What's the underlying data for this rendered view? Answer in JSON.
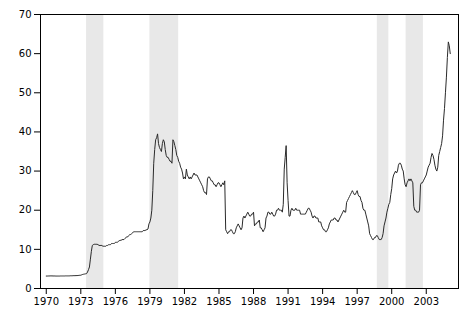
{
  "chart_data": {
    "type": "line",
    "x": [
      1970.0,
      1970.083,
      1970.167,
      1970.25,
      1970.333,
      1970.417,
      1970.5,
      1970.583,
      1970.667,
      1970.75,
      1970.833,
      1970.917,
      1971.0,
      1971.083,
      1971.167,
      1971.25,
      1971.333,
      1971.417,
      1971.5,
      1971.583,
      1971.667,
      1971.75,
      1971.833,
      1971.917,
      1972.0,
      1972.083,
      1972.167,
      1972.25,
      1972.333,
      1972.417,
      1972.5,
      1972.583,
      1972.667,
      1972.75,
      1972.833,
      1972.917,
      1973.0,
      1973.083,
      1973.167,
      1973.25,
      1973.333,
      1973.417,
      1973.5,
      1973.583,
      1973.667,
      1973.75,
      1973.833,
      1973.917,
      1974.0,
      1974.083,
      1974.167,
      1974.25,
      1974.333,
      1974.417,
      1974.5,
      1974.583,
      1974.667,
      1974.75,
      1974.833,
      1974.917,
      1975.0,
      1975.083,
      1975.167,
      1975.25,
      1975.333,
      1975.417,
      1975.5,
      1975.583,
      1975.667,
      1975.75,
      1975.833,
      1975.917,
      1976.0,
      1976.083,
      1976.167,
      1976.25,
      1976.333,
      1976.417,
      1976.5,
      1976.583,
      1976.667,
      1976.75,
      1976.833,
      1976.917,
      1977.0,
      1977.083,
      1977.167,
      1977.25,
      1977.333,
      1977.417,
      1977.5,
      1977.583,
      1977.667,
      1977.75,
      1977.833,
      1977.917,
      1978.0,
      1978.083,
      1978.167,
      1978.25,
      1978.333,
      1978.417,
      1978.5,
      1978.583,
      1978.667,
      1978.75,
      1978.833,
      1978.917,
      1979.0,
      1979.083,
      1979.167,
      1979.25,
      1979.333,
      1979.417,
      1979.5,
      1979.583,
      1979.667,
      1979.75,
      1979.833,
      1979.917,
      1980.0,
      1980.083,
      1980.167,
      1980.25,
      1980.333,
      1980.417,
      1980.5,
      1980.583,
      1980.667,
      1980.75,
      1980.833,
      1980.917,
      1981.0,
      1981.083,
      1981.167,
      1981.25,
      1981.333,
      1981.417,
      1981.5,
      1981.583,
      1981.667,
      1981.75,
      1981.833,
      1981.917,
      1982.0,
      1982.083,
      1982.167,
      1982.25,
      1982.333,
      1982.417,
      1982.5,
      1982.583,
      1982.667,
      1982.75,
      1982.833,
      1982.917,
      1983.0,
      1983.083,
      1983.167,
      1983.25,
      1983.333,
      1983.417,
      1983.5,
      1983.583,
      1983.667,
      1983.75,
      1983.833,
      1983.917,
      1984.0,
      1984.083,
      1984.167,
      1984.25,
      1984.333,
      1984.417,
      1984.5,
      1984.583,
      1984.667,
      1984.75,
      1984.833,
      1984.917,
      1985.0,
      1985.083,
      1985.167,
      1985.25,
      1985.333,
      1985.417,
      1985.5,
      1985.583,
      1985.667,
      1985.75,
      1985.833,
      1985.917,
      1986.0,
      1986.083,
      1986.167,
      1986.25,
      1986.333,
      1986.417,
      1986.5,
      1986.583,
      1986.667,
      1986.75,
      1986.833,
      1986.917,
      1987.0,
      1987.083,
      1987.167,
      1987.25,
      1987.333,
      1987.417,
      1987.5,
      1987.583,
      1987.667,
      1987.75,
      1987.833,
      1987.917,
      1988.0,
      1988.083,
      1988.167,
      1988.25,
      1988.333,
      1988.417,
      1988.5,
      1988.583,
      1988.667,
      1988.75,
      1988.833,
      1988.917,
      1989.0,
      1989.083,
      1989.167,
      1989.25,
      1989.333,
      1989.417,
      1989.5,
      1989.583,
      1989.667,
      1989.75,
      1989.833,
      1989.917,
      1990.0,
      1990.083,
      1990.167,
      1990.25,
      1990.333,
      1990.417,
      1990.5,
      1990.583,
      1990.667,
      1990.75,
      1990.833,
      1990.917,
      1991.0,
      1991.083,
      1991.167,
      1991.25,
      1991.333,
      1991.417,
      1991.5,
      1991.583,
      1991.667,
      1991.75,
      1991.833,
      1991.917,
      1992.0,
      1992.083,
      1992.167,
      1992.25,
      1992.333,
      1992.417,
      1992.5,
      1992.583,
      1992.667,
      1992.75,
      1992.833,
      1992.917,
      1993.0,
      1993.083,
      1993.167,
      1993.25,
      1993.333,
      1993.417,
      1993.5,
      1993.583,
      1993.667,
      1993.75,
      1993.833,
      1993.917,
      1994.0,
      1994.083,
      1994.167,
      1994.25,
      1994.333,
      1994.417,
      1994.5,
      1994.583,
      1994.667,
      1994.75,
      1994.833,
      1994.917,
      1995.0,
      1995.083,
      1995.167,
      1995.25,
      1995.333,
      1995.417,
      1995.5,
      1995.583,
      1995.667,
      1995.75,
      1995.833,
      1995.917,
      1996.0,
      1996.083,
      1996.167,
      1996.25,
      1996.333,
      1996.417,
      1996.5,
      1996.583,
      1996.667,
      1996.75,
      1996.833,
      1996.917,
      1997.0,
      1997.083,
      1997.167,
      1997.25,
      1997.333,
      1997.417,
      1997.5,
      1997.583,
      1997.667,
      1997.75,
      1997.833,
      1997.917,
      1998.0,
      1998.083,
      1998.167,
      1998.25,
      1998.333,
      1998.417,
      1998.5,
      1998.583,
      1998.667,
      1998.75,
      1998.833,
      1998.917,
      1999.0,
      1999.083,
      1999.167,
      1999.25,
      1999.333,
      1999.417,
      1999.5,
      1999.583,
      1999.667,
      1999.75,
      1999.833,
      1999.917,
      2000.0,
      2000.083,
      2000.167,
      2000.25,
      2000.333,
      2000.417,
      2000.5,
      2000.583,
      2000.667,
      2000.75,
      2000.833,
      2000.917,
      2001.0,
      2001.083,
      2001.167,
      2001.25,
      2001.333,
      2001.417,
      2001.5,
      2001.583,
      2001.667,
      2001.75,
      2001.833,
      2001.917,
      2002.0,
      2002.083,
      2002.167,
      2002.25,
      2002.333,
      2002.417,
      2002.5,
      2002.583,
      2002.667,
      2002.75,
      2002.833,
      2002.917,
      2003.0,
      2003.083,
      2003.167,
      2003.25,
      2003.333,
      2003.417,
      2003.5,
      2003.583,
      2003.667,
      2003.75,
      2003.833,
      2003.917,
      2004.0,
      2004.083,
      2004.167,
      2004.25,
      2004.333,
      2004.417,
      2004.5,
      2004.583,
      2004.667,
      2004.75,
      2004.833,
      2004.917,
      2005.0,
      2005.083
    ],
    "values": [
      3.18,
      3.18,
      3.2,
      3.2,
      3.22,
      3.22,
      3.22,
      3.2,
      3.2,
      3.2,
      3.18,
      3.18,
      3.18,
      3.18,
      3.18,
      3.2,
      3.2,
      3.2,
      3.2,
      3.2,
      3.22,
      3.22,
      3.22,
      3.22,
      3.22,
      3.25,
      3.25,
      3.25,
      3.28,
      3.28,
      3.28,
      3.3,
      3.3,
      3.32,
      3.35,
      3.38,
      3.4,
      3.5,
      3.6,
      3.65,
      3.7,
      3.75,
      3.8,
      4.2,
      4.8,
      5.5,
      7.5,
      9.5,
      11.0,
      11.2,
      11.3,
      11.3,
      11.3,
      11.3,
      11.2,
      11.0,
      11.0,
      11.0,
      11.0,
      10.8,
      10.8,
      10.8,
      10.8,
      11.0,
      11.0,
      11.2,
      11.2,
      11.2,
      11.5,
      11.5,
      11.5,
      11.5,
      11.8,
      11.8,
      11.8,
      12.0,
      12.2,
      12.3,
      12.3,
      12.5,
      12.5,
      12.5,
      12.8,
      13.0,
      13.2,
      13.2,
      13.5,
      13.8,
      13.8,
      14.0,
      14.2,
      14.5,
      14.5,
      14.5,
      14.5,
      14.5,
      14.5,
      14.5,
      14.5,
      14.5,
      14.5,
      14.8,
      14.8,
      14.8,
      15.0,
      15.0,
      15.2,
      16.5,
      17.0,
      18.0,
      20.0,
      25.0,
      32.0,
      35.5,
      38.0,
      38.5,
      39.5,
      37.0,
      36.0,
      35.5,
      35.0,
      37.0,
      38.0,
      37.5,
      35.5,
      34.0,
      33.5,
      33.5,
      33.0,
      32.5,
      32.5,
      32.0,
      38.0,
      37.5,
      36.5,
      35.5,
      34.0,
      33.5,
      32.5,
      32.0,
      31.0,
      30.5,
      29.5,
      28.0,
      28.5,
      28.0,
      30.5,
      29.0,
      28.5,
      28.0,
      28.5,
      28.0,
      28.5,
      29.0,
      29.5,
      29.0,
      29.0,
      29.0,
      28.5,
      28.0,
      27.5,
      27.0,
      26.5,
      26.0,
      25.0,
      24.5,
      24.5,
      24.0,
      28.0,
      28.5,
      28.5,
      28.0,
      27.5,
      27.5,
      27.0,
      26.5,
      26.5,
      26.0,
      26.5,
      27.0,
      27.0,
      26.5,
      26.0,
      26.5,
      27.0,
      26.5,
      27.5,
      15.0,
      14.5,
      14.0,
      14.5,
      14.5,
      15.0,
      15.0,
      14.5,
      14.0,
      14.0,
      14.5,
      15.5,
      16.0,
      16.5,
      16.0,
      15.5,
      15.0,
      15.5,
      18.0,
      18.5,
      18.0,
      18.5,
      19.0,
      19.5,
      19.0,
      18.5,
      18.5,
      19.0,
      19.0,
      19.5,
      16.0,
      16.5,
      16.5,
      17.0,
      17.0,
      17.5,
      15.5,
      15.5,
      15.0,
      14.5,
      15.0,
      15.5,
      18.0,
      18.5,
      19.5,
      19.5,
      19.0,
      19.0,
      19.5,
      19.0,
      18.5,
      18.5,
      19.0,
      20.0,
      20.0,
      20.5,
      20.0,
      20.0,
      20.0,
      19.5,
      21.5,
      30.5,
      33.5,
      36.5,
      27.0,
      22.5,
      18.5,
      18.5,
      20.0,
      20.5,
      20.0,
      20.0,
      20.0,
      20.5,
      20.0,
      20.0,
      20.0,
      20.0,
      19.0,
      19.0,
      19.0,
      19.0,
      19.0,
      19.0,
      19.5,
      20.0,
      20.5,
      20.5,
      20.0,
      19.5,
      18.5,
      18.0,
      18.5,
      18.5,
      18.0,
      18.0,
      18.0,
      17.0,
      17.0,
      17.0,
      16.0,
      15.5,
      15.0,
      15.0,
      14.5,
      14.5,
      15.0,
      15.5,
      16.5,
      17.0,
      17.5,
      17.5,
      17.5,
      18.0,
      18.0,
      17.5,
      17.5,
      17.0,
      17.5,
      18.0,
      18.5,
      19.0,
      19.5,
      20.0,
      19.5,
      19.5,
      22.0,
      22.5,
      23.0,
      23.5,
      24.0,
      24.5,
      25.0,
      24.5,
      24.0,
      24.0,
      24.5,
      25.0,
      24.0,
      23.5,
      23.5,
      22.5,
      22.0,
      20.5,
      20.0,
      20.0,
      19.0,
      18.0,
      17.0,
      16.0,
      14.0,
      13.5,
      13.0,
      12.5,
      12.5,
      13.0,
      13.0,
      13.5,
      13.5,
      13.0,
      12.5,
      12.5,
      12.5,
      13.0,
      14.0,
      16.0,
      17.0,
      18.0,
      19.5,
      20.5,
      21.5,
      22.0,
      24.0,
      25.5,
      28.0,
      29.0,
      29.5,
      30.0,
      29.5,
      30.0,
      31.5,
      32.0,
      32.0,
      31.5,
      30.5,
      30.0,
      28.0,
      26.5,
      26.0,
      27.0,
      27.5,
      28.0,
      27.5,
      28.0,
      27.5,
      27.0,
      21.0,
      20.0,
      20.0,
      19.5,
      19.5,
      19.5,
      20.0,
      26.5,
      27.0,
      27.0,
      27.5,
      28.0,
      28.5,
      29.0,
      30.0,
      31.0,
      31.5,
      32.0,
      33.5,
      34.5,
      34.0,
      33.0,
      31.5,
      30.5,
      30.0,
      31.0,
      34.0,
      35.0,
      36.0,
      37.0,
      39.0,
      43.0,
      46.0,
      50.0,
      54.0,
      59.0,
      63.0,
      62.0,
      60.0
    ],
    "color": "#2a2a2a",
    "xlim": [
      1969.5,
      2005.8
    ],
    "ylim": [
      0,
      70
    ],
    "xticks": [
      1970,
      1973,
      1976,
      1979,
      1982,
      1985,
      1988,
      1991,
      1994,
      1997,
      2000,
      2003
    ],
    "yticks": [
      0,
      10,
      20,
      30,
      40,
      50,
      60,
      70
    ],
    "shaded_regions": {
      "color": "#e8e8e8",
      "ranges": [
        [
          1973.5,
          1975.0
        ],
        [
          1979.0,
          1981.5
        ],
        [
          1998.75,
          1999.75
        ],
        [
          2001.25,
          2002.75
        ]
      ]
    }
  }
}
